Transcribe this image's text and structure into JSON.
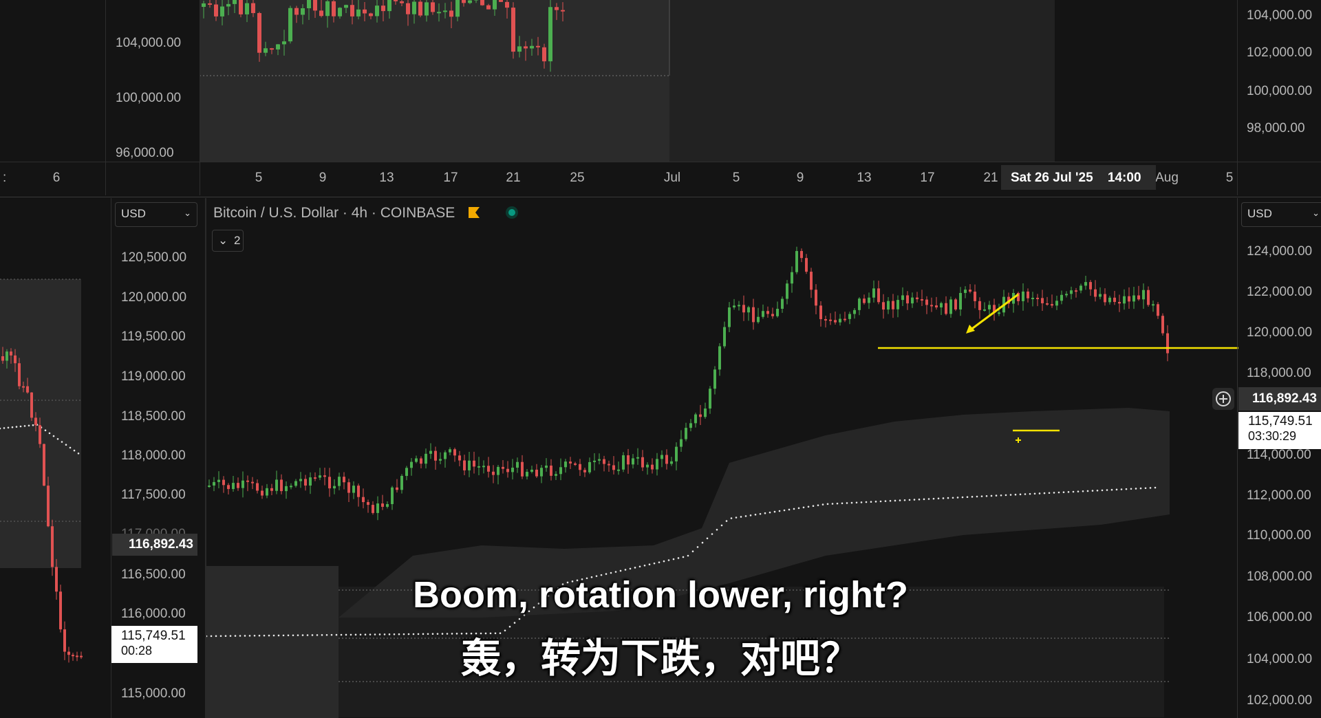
{
  "top_chart": {
    "left_axis_labels": [
      "104,000.00",
      "100,000.00",
      "96,000.00"
    ],
    "right_axis_labels": [
      "104,000.00",
      "102,000.00",
      "100,000.00",
      "98,000.00"
    ],
    "date_labels": [
      "6",
      "5",
      "9",
      "13",
      "17",
      "21",
      "25",
      "Jul",
      "5",
      "9",
      "13",
      "17",
      "21",
      "Aug",
      "5"
    ],
    "crosshair_date": "Sat 26 Jul '25",
    "crosshair_time": "14:00",
    "left_cut_label": ":"
  },
  "left_chart": {
    "currency": "USD",
    "axis_labels": [
      "120,500.00",
      "120,000.00",
      "119,500.00",
      "119,000.00",
      "118,500.00",
      "118,000.00",
      "117,500.00",
      "116,500.00",
      "116,000.00",
      "115,000.00"
    ],
    "hidden_label": "117,000.00",
    "crosshair_price": "116,892.43",
    "last_price": "115,749.51",
    "countdown": "00:28"
  },
  "main_chart": {
    "symbol_legend": "Bitcoin / U.S. Dollar · 4h · COINBASE",
    "collapse_count": "2",
    "currency": "USD",
    "axis_labels": [
      "124,000.00",
      "122,000.00",
      "120,000.00",
      "118,000.00",
      "114,000.00",
      "112,000.00",
      "110,000.00",
      "108,000.00",
      "106,000.00",
      "104,000.00",
      "102,000.00"
    ],
    "crosshair_price": "116,892.43",
    "last_price": "115,749.51",
    "countdown": "03:30:29",
    "flag_icon": "flag-icon",
    "status_icon": "live-dot-icon",
    "add_icon": "plus-circle-icon"
  },
  "subtitles": {
    "english": "Boom, rotation lower, right?",
    "chinese": "轰，转为下跌，对吧？"
  },
  "colors": {
    "up": "#4caf50",
    "down": "#e05252",
    "annotation": "#f5e300",
    "live": "#089981"
  }
}
